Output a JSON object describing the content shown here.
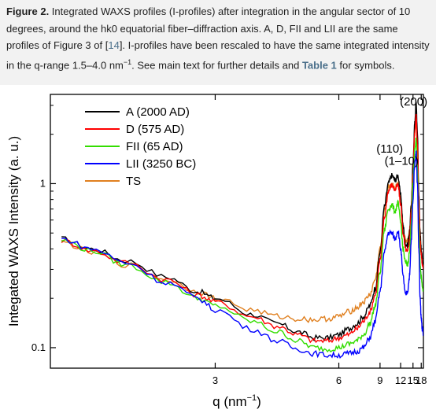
{
  "caption": {
    "label": "Figure 2.",
    "text_1": " Integrated WAXS profiles (I-profiles) after integration in the angular sector of 10 degrees, around the hk0 equatorial fiber–diffraction axis. A, D, FII and LII are the same profiles of Figure 3 of [",
    "ref": "14",
    "text_2": "]. I-profiles have been rescaled to have the same integrated intensity in the q-range 1.5–4.0 nm",
    "superscript": "−1",
    "text_3": ". See main text for further details and ",
    "table_ref": "Table 1",
    "text_4": " for symbols."
  },
  "colors": {
    "A": "#000000",
    "D": "#ff0000",
    "FII": "#33dd00",
    "LII": "#0000ff",
    "TS": "#e08020"
  },
  "chart_data": {
    "type": "line",
    "xscale": "reciprocal",
    "yscale": "log",
    "xlim": [
      1.8,
      19
    ],
    "ylim": [
      0.075,
      3.5
    ],
    "xticks": [
      3,
      6,
      9,
      12,
      15,
      18
    ],
    "yticks": [
      0.1,
      1
    ],
    "xtick_labels": [
      "3",
      "6",
      "9",
      "12",
      "15",
      "18"
    ],
    "ytick_labels": [
      "0.1",
      "1"
    ],
    "xlabel": "q (nm",
    "xlabel_sup": "−1",
    "xlabel_end": ")",
    "ylabel": "Integated WAXS Intensity (a. u.)",
    "legend_position": "top-left",
    "annotations": [
      {
        "text": "(110)",
        "x": 10.2,
        "y": 1.55
      },
      {
        "text": "(1–10)",
        "x": 12.2,
        "y": 1.3
      },
      {
        "text": "(200)",
        "x": 15.2,
        "y": 3.0
      }
    ],
    "series": [
      {
        "name": "A (2000 AD)",
        "color": "#000000",
        "x": [
          1.85,
          2.0,
          2.2,
          2.5,
          2.8,
          3.0,
          3.5,
          4.0,
          4.5,
          5.0,
          5.5,
          6.0,
          6.5,
          7.0,
          7.5,
          8.0,
          8.5,
          9.0,
          9.5,
          10.0,
          10.5,
          11.0,
          11.5,
          12.0,
          12.5,
          13.0,
          13.5,
          14.0,
          14.5,
          15.0,
          15.5,
          16.0,
          16.5,
          17.0,
          17.5,
          18.0,
          18.5,
          19.0
        ],
        "y": [
          0.46,
          0.4,
          0.34,
          0.27,
          0.22,
          0.2,
          0.16,
          0.14,
          0.125,
          0.115,
          0.115,
          0.12,
          0.13,
          0.14,
          0.155,
          0.18,
          0.23,
          0.38,
          0.72,
          1.0,
          1.12,
          1.05,
          1.12,
          0.85,
          0.55,
          0.43,
          0.42,
          0.5,
          0.75,
          1.3,
          2.3,
          3.1,
          2.0,
          0.85,
          0.5,
          0.4,
          0.35,
          0.32
        ]
      },
      {
        "name": "D (575 AD)",
        "color": "#ff0000",
        "x": [
          1.85,
          2.0,
          2.2,
          2.5,
          2.8,
          3.0,
          3.5,
          4.0,
          4.5,
          5.0,
          5.5,
          6.0,
          6.5,
          7.0,
          7.5,
          8.0,
          8.5,
          9.0,
          9.5,
          10.0,
          10.5,
          11.0,
          11.5,
          12.0,
          12.5,
          13.0,
          13.5,
          14.0,
          14.5,
          15.0,
          15.5,
          16.0,
          16.5,
          17.0,
          17.5,
          18.0,
          18.5,
          19.0
        ],
        "y": [
          0.45,
          0.39,
          0.33,
          0.26,
          0.21,
          0.19,
          0.155,
          0.135,
          0.12,
          0.11,
          0.11,
          0.115,
          0.12,
          0.13,
          0.145,
          0.165,
          0.21,
          0.34,
          0.62,
          0.9,
          0.98,
          0.92,
          0.98,
          0.75,
          0.5,
          0.4,
          0.38,
          0.45,
          0.68,
          1.15,
          2.0,
          2.6,
          1.7,
          0.75,
          0.45,
          0.37,
          0.32,
          0.3
        ]
      },
      {
        "name": "FII (65 AD)",
        "color": "#33dd00",
        "x": [
          1.85,
          2.0,
          2.2,
          2.5,
          2.8,
          3.0,
          3.5,
          4.0,
          4.5,
          5.0,
          5.5,
          6.0,
          6.5,
          7.0,
          7.5,
          8.0,
          8.5,
          9.0,
          9.5,
          10.0,
          10.5,
          11.0,
          11.5,
          12.0,
          12.5,
          13.0,
          13.5,
          14.0,
          14.5,
          15.0,
          15.5,
          16.0,
          16.5,
          17.0,
          17.5,
          18.0,
          18.5,
          19.0
        ],
        "y": [
          0.45,
          0.39,
          0.32,
          0.25,
          0.2,
          0.18,
          0.145,
          0.125,
          0.11,
          0.1,
          0.098,
          0.1,
          0.105,
          0.11,
          0.12,
          0.14,
          0.18,
          0.29,
          0.52,
          0.7,
          0.74,
          0.68,
          0.76,
          0.58,
          0.4,
          0.33,
          0.32,
          0.38,
          0.58,
          1.0,
          1.6,
          1.85,
          1.2,
          0.55,
          0.33,
          0.27,
          0.24,
          0.22
        ]
      },
      {
        "name": "LII (3250 BC)",
        "color": "#0000ff",
        "x": [
          1.85,
          2.0,
          2.2,
          2.5,
          2.8,
          3.0,
          3.5,
          4.0,
          4.5,
          5.0,
          5.5,
          6.0,
          6.5,
          7.0,
          7.5,
          8.0,
          8.5,
          9.0,
          9.5,
          10.0,
          10.5,
          11.0,
          11.5,
          12.0,
          12.5,
          13.0,
          13.5,
          14.0,
          14.5,
          15.0,
          15.5,
          16.0,
          16.5,
          17.0,
          17.5,
          18.0,
          18.5,
          19.0
        ],
        "y": [
          0.46,
          0.4,
          0.33,
          0.25,
          0.2,
          0.17,
          0.13,
          0.11,
          0.098,
          0.092,
          0.09,
          0.09,
          0.092,
          0.095,
          0.1,
          0.115,
          0.145,
          0.22,
          0.38,
          0.5,
          0.5,
          0.46,
          0.52,
          0.4,
          0.27,
          0.21,
          0.22,
          0.27,
          0.45,
          0.8,
          1.3,
          1.55,
          1.0,
          0.4,
          0.2,
          0.15,
          0.13,
          0.12
        ]
      },
      {
        "name": "TS",
        "color": "#e08020",
        "x": [
          1.85,
          2.0,
          2.2,
          2.5,
          2.8,
          3.0,
          3.5,
          4.0,
          4.5,
          5.0,
          5.5,
          6.0,
          6.5,
          7.0,
          7.5,
          8.0,
          8.5,
          9.0,
          9.5,
          10.0,
          10.5,
          11.0,
          11.5,
          12.0,
          12.5,
          13.0,
          13.5,
          14.0,
          14.5,
          15.0,
          15.5,
          16.0,
          16.5,
          17.0,
          17.5,
          18.0,
          18.5,
          19.0
        ],
        "y": [
          0.44,
          0.38,
          0.32,
          0.26,
          0.22,
          0.2,
          0.17,
          0.155,
          0.15,
          0.148,
          0.15,
          0.155,
          0.165,
          0.175,
          0.19,
          0.21,
          0.26,
          0.4,
          0.68,
          0.95,
          1.0,
          0.95,
          1.0,
          0.78,
          0.55,
          0.45,
          0.45,
          0.52,
          0.75,
          1.2,
          2.0,
          2.5,
          1.7,
          0.8,
          0.48,
          0.38,
          0.34,
          0.33
        ]
      }
    ]
  }
}
